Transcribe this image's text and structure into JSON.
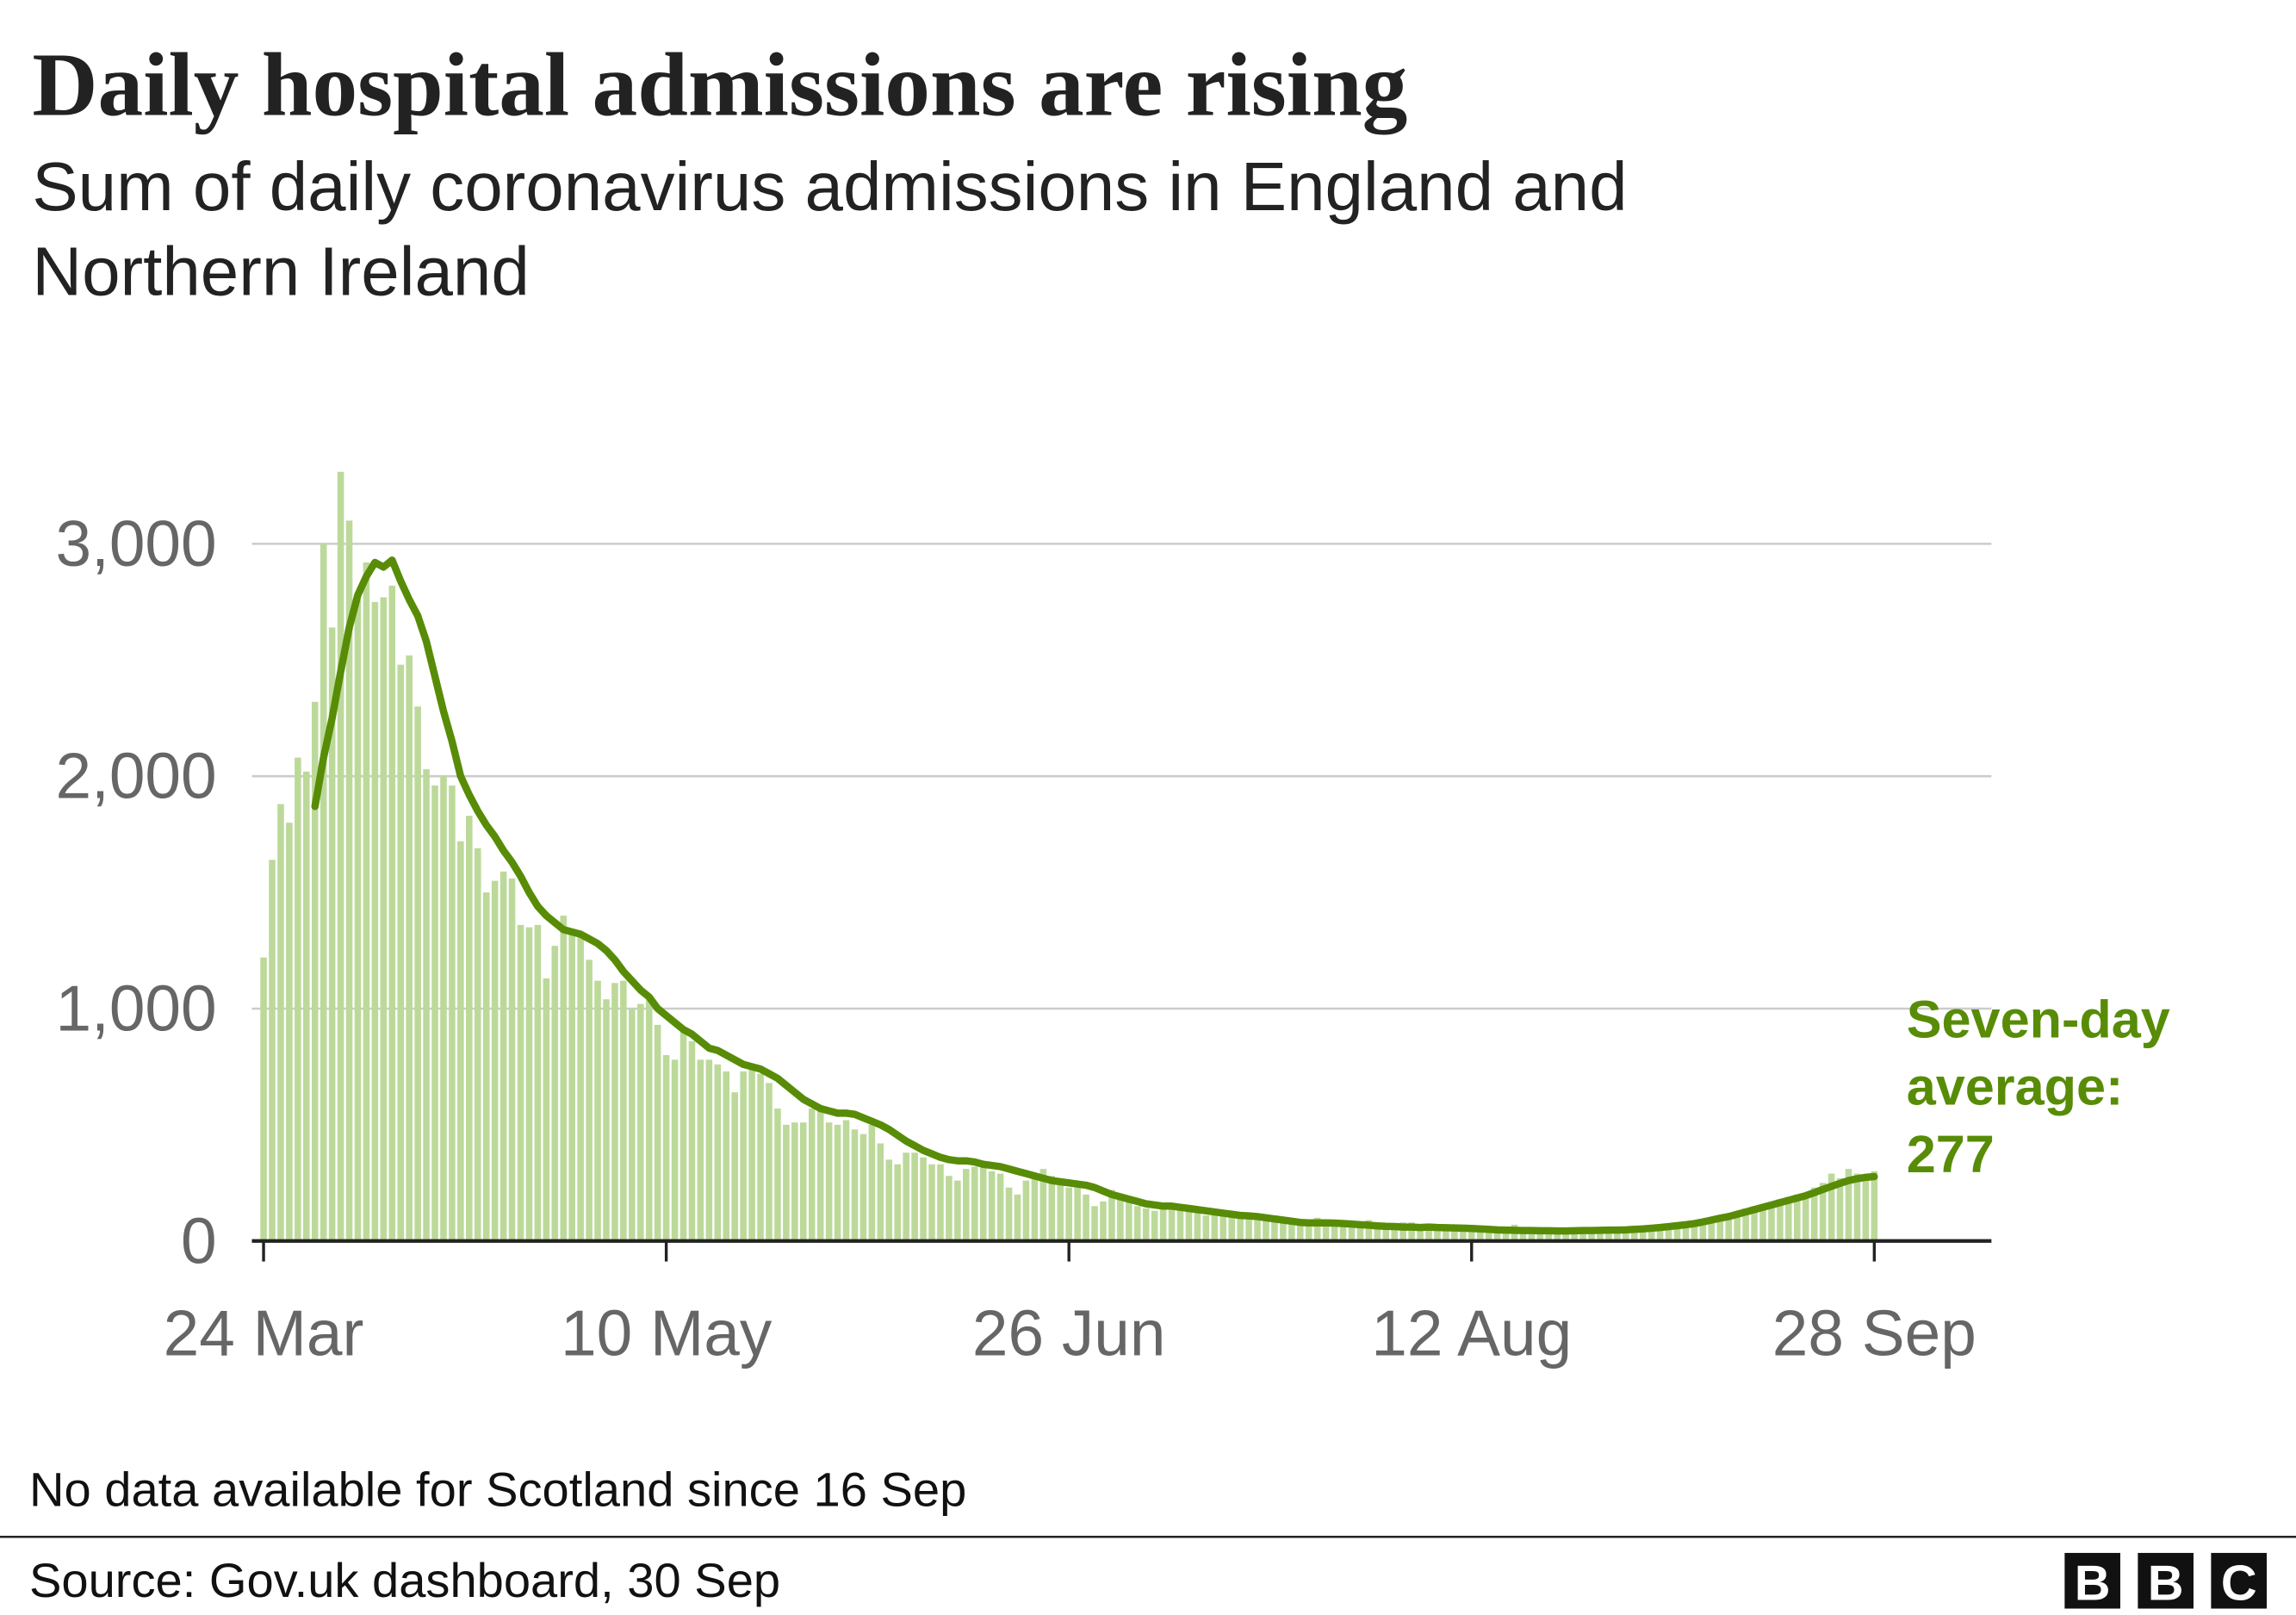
{
  "chart_data": {
    "type": "bar-line",
    "title": "Daily hospital admissions are rising",
    "subtitle": [
      "Sum of daily coronavirus admissions in England and",
      "Northern Ireland"
    ],
    "categories": [
      "24 Mar",
      null,
      null,
      null,
      null,
      null,
      null,
      null,
      null,
      null,
      null,
      null,
      null,
      null,
      null,
      null,
      null,
      null,
      null,
      null,
      null,
      null,
      null,
      null,
      null,
      null,
      null,
      null,
      null,
      null,
      null,
      null,
      null,
      null,
      null,
      null,
      null,
      null,
      null,
      null,
      null,
      null,
      null,
      null,
      null,
      null,
      null,
      "10 May",
      null,
      null,
      null,
      null,
      null,
      null,
      null,
      null,
      null,
      null,
      null,
      null,
      null,
      null,
      null,
      null,
      null,
      null,
      null,
      null,
      null,
      null,
      null,
      null,
      null,
      null,
      null,
      null,
      null,
      null,
      null,
      null,
      null,
      null,
      null,
      null,
      null,
      null,
      null,
      null,
      null,
      null,
      null,
      null,
      null,
      null,
      "26 Jun",
      null,
      null,
      null,
      null,
      null,
      null,
      null,
      null,
      null,
      null,
      null,
      null,
      null,
      null,
      null,
      null,
      null,
      null,
      null,
      null,
      null,
      null,
      null,
      null,
      null,
      null,
      null,
      null,
      null,
      null,
      null,
      null,
      null,
      null,
      null,
      null,
      null,
      null,
      null,
      null,
      null,
      null,
      null,
      null,
      null,
      null,
      "12 Aug",
      null,
      null,
      null,
      null,
      null,
      null,
      null,
      null,
      null,
      null,
      null,
      null,
      null,
      null,
      null,
      null,
      null,
      null,
      null,
      null,
      null,
      null,
      null,
      null,
      null,
      null,
      null,
      null,
      null,
      null,
      null,
      null,
      null,
      null,
      null,
      null,
      null,
      null,
      null,
      null,
      null,
      null,
      null,
      null,
      null,
      null,
      "28 Sep"
    ],
    "series": [
      {
        "type": "bar",
        "color": "#bcd99a",
        "values": [
          1220,
          1640,
          1880,
          1800,
          2080,
          2020,
          2320,
          3000,
          2640,
          3310,
          3100,
          2760,
          2920,
          2750,
          2770,
          2820,
          2480,
          2520,
          2300,
          2030,
          1960,
          2000,
          1960,
          1720,
          1830,
          1690,
          1500,
          1550,
          1590,
          1560,
          1360,
          1350,
          1360,
          1130,
          1270,
          1400,
          1340,
          1310,
          1210,
          1120,
          1040,
          1110,
          1120,
          1000,
          1020,
          1060,
          930,
          800,
          780,
          900,
          860,
          780,
          780,
          760,
          730,
          640,
          730,
          740,
          720,
          680,
          570,
          500,
          510,
          510,
          570,
          560,
          510,
          500,
          520,
          480,
          460,
          500,
          420,
          350,
          330,
          380,
          380,
          360,
          330,
          330,
          280,
          260,
          310,
          320,
          330,
          300,
          290,
          230,
          200,
          260,
          280,
          310,
          280,
          240,
          230,
          230,
          200,
          150,
          170,
          220,
          200,
          180,
          150,
          140,
          130,
          150,
          160,
          150,
          140,
          120,
          110,
          120,
          130,
          120,
          110,
          100,
          90,
          100,
          110,
          100,
          90,
          80,
          90,
          100,
          90,
          80,
          80,
          70,
          80,
          90,
          80,
          70,
          70,
          80,
          80,
          70,
          70,
          60,
          60,
          70,
          70,
          60,
          60,
          50,
          60,
          60,
          70,
          60,
          50,
          50,
          50,
          40,
          50,
          50,
          40,
          50,
          40,
          40,
          50,
          40,
          40,
          50,
          60,
          50,
          50,
          60,
          70,
          80,
          70,
          90,
          100,
          110,
          120,
          140,
          150,
          140,
          160,
          180,
          190,
          200,
          200,
          230,
          250,
          290,
          270,
          310,
          290,
          280,
          300
        ]
      },
      {
        "type": "line",
        "color": "#588c07",
        "values": [
          null,
          null,
          null,
          null,
          null,
          null,
          1870,
          2080,
          2250,
          2450,
          2640,
          2780,
          2860,
          2920,
          2900,
          2930,
          2840,
          2760,
          2690,
          2580,
          2430,
          2280,
          2150,
          2000,
          1920,
          1850,
          1790,
          1740,
          1680,
          1630,
          1570,
          1500,
          1440,
          1400,
          1370,
          1340,
          1330,
          1320,
          1300,
          1280,
          1250,
          1210,
          1160,
          1120,
          1080,
          1050,
          1000,
          970,
          940,
          910,
          890,
          860,
          830,
          820,
          800,
          780,
          760,
          750,
          740,
          720,
          700,
          670,
          640,
          610,
          590,
          570,
          560,
          550,
          550,
          545,
          530,
          515,
          500,
          480,
          455,
          430,
          410,
          390,
          375,
          360,
          350,
          345,
          345,
          340,
          330,
          325,
          320,
          310,
          300,
          290,
          280,
          270,
          260,
          255,
          250,
          245,
          240,
          230,
          215,
          200,
          190,
          180,
          170,
          160,
          155,
          150,
          150,
          145,
          140,
          135,
          130,
          125,
          120,
          115,
          110,
          108,
          105,
          100,
          95,
          90,
          85,
          80,
          78,
          78,
          78,
          77,
          75,
          73,
          70,
          68,
          65,
          63,
          62,
          60,
          60,
          58,
          60,
          58,
          57,
          56,
          55,
          54,
          52,
          50,
          48,
          47,
          46,
          45,
          45,
          44,
          44,
          43,
          43,
          44,
          45,
          45,
          46,
          47,
          47,
          48,
          50,
          52,
          55,
          58,
          62,
          66,
          70,
          75,
          82,
          90,
          98,
          105,
          115,
          125,
          135,
          145,
          155,
          165,
          175,
          185,
          195,
          208,
          222,
          235,
          248,
          260,
          268,
          274,
          277
        ]
      }
    ],
    "annotation": [
      "Seven-day",
      "average:",
      "277"
    ],
    "ylim": [
      0,
      3400
    ],
    "yticks": [
      0,
      {
        "value": 1000,
        "label": "1,000"
      },
      {
        "value": 2000,
        "label": "2,000"
      },
      {
        "value": 3000,
        "label": "3,000"
      }
    ],
    "grid": true,
    "footnote": "No data available for Scotland since 16 Sep",
    "source": "Source: Gov.uk dashboard, 30 Sep",
    "logo": [
      "B",
      "B",
      "C"
    ]
  }
}
